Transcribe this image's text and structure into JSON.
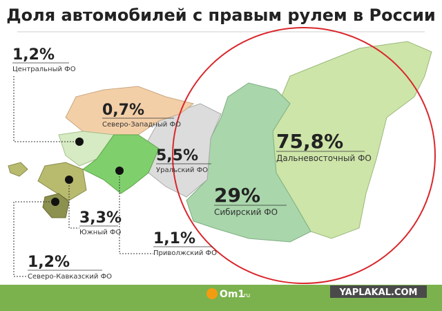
{
  "header": {
    "title": "Доля автомобилей с правым рулем в России"
  },
  "regions": [
    {
      "value": "1,2%",
      "name": "Центральный ФО"
    },
    {
      "value": "0,7%",
      "name": "Северо-Западный ФО"
    },
    {
      "value": "5,5%",
      "name": "Уральский ФО"
    },
    {
      "value": "75,8%",
      "name": "Дальневосточный ФО"
    },
    {
      "value": "29%",
      "name": "Сибирский ФО"
    },
    {
      "value": "3,3%",
      "name": "Южный ФО"
    },
    {
      "value": "1,1%",
      "name": "Приволжский ФО"
    },
    {
      "value": "1,2%",
      "name": "Северо-Кавказский ФО"
    }
  ],
  "footer": {
    "logo": "Om1",
    "logo_suffix": ".ru",
    "watermark": "YAPLAKAL.COM"
  }
}
